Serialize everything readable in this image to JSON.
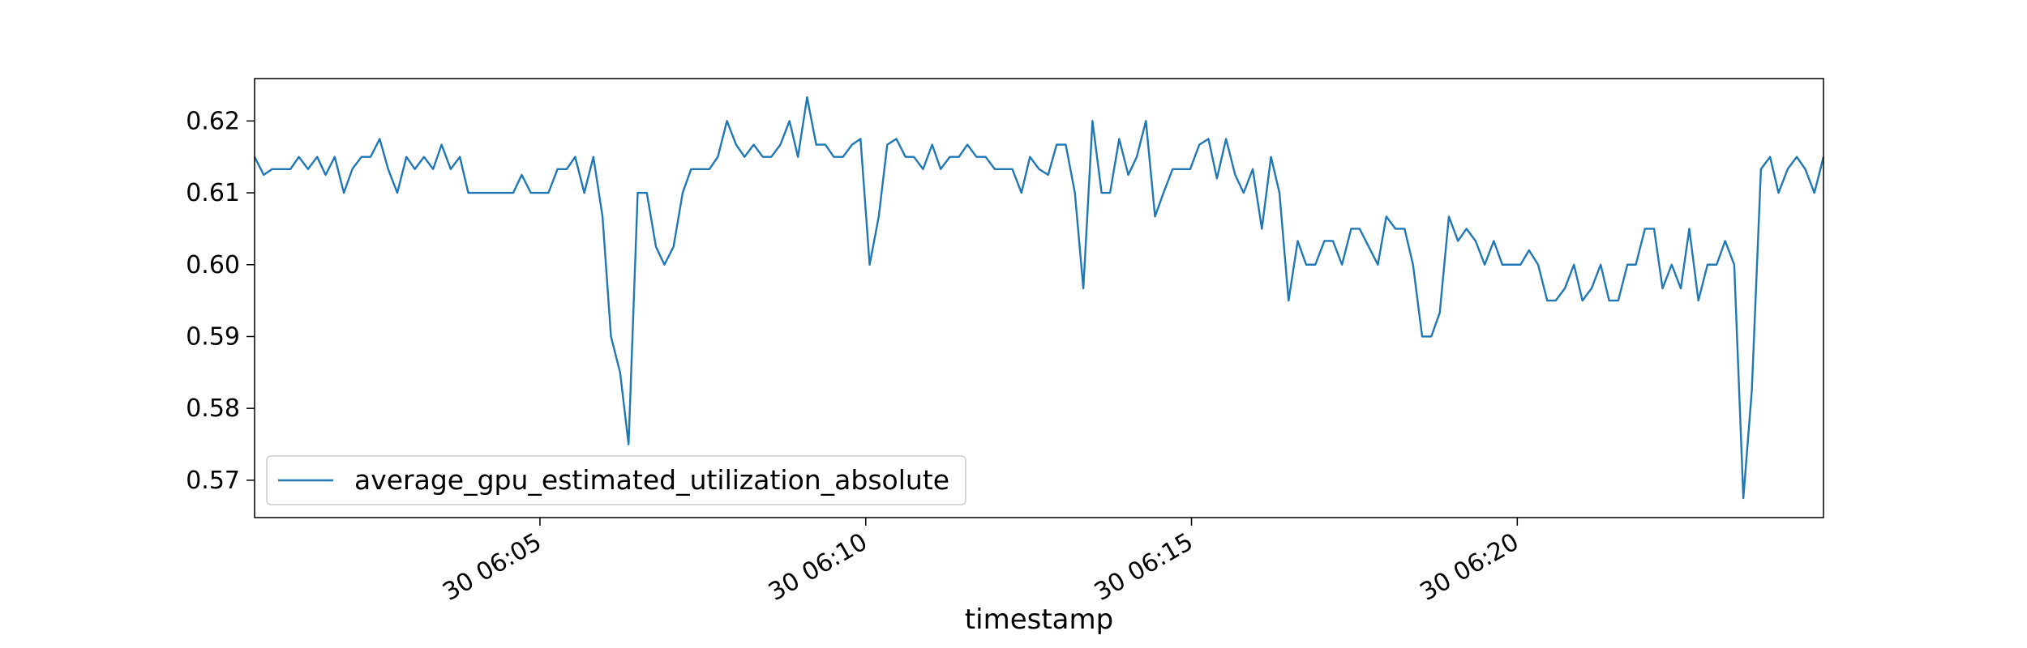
{
  "chart_data": {
    "type": "line",
    "xlabel": "timestamp",
    "legend": "lower left",
    "grid": false,
    "xlim": [
      0.62,
      24.7
    ],
    "ylim": [
      0.5648,
      0.6259
    ],
    "xticks": [
      {
        "value": 5,
        "label": "30 06:05"
      },
      {
        "value": 10,
        "label": "30 06:10"
      },
      {
        "value": 15,
        "label": "30 06:15"
      },
      {
        "value": 20,
        "label": "30 06:20"
      }
    ],
    "yticks": [
      0.57,
      0.58,
      0.59,
      {
        "value": 0.6,
        "label": "0.60"
      },
      0.61,
      0.62
    ],
    "x": [
      0.62,
      0.76,
      0.89,
      1.03,
      1.17,
      1.3,
      1.44,
      1.58,
      1.71,
      1.85,
      1.99,
      2.12,
      2.26,
      2.4,
      2.54,
      2.67,
      2.81,
      2.95,
      3.08,
      3.22,
      3.36,
      3.49,
      3.63,
      3.77,
      3.9,
      4.04,
      4.18,
      4.31,
      4.45,
      4.59,
      4.72,
      4.86,
      5.0,
      5.13,
      5.27,
      5.41,
      5.54,
      5.68,
      5.82,
      5.96,
      6.09,
      6.23,
      6.36,
      6.5,
      6.64,
      6.78,
      6.91,
      7.05,
      7.19,
      7.32,
      7.46,
      7.6,
      7.73,
      7.87,
      8.01,
      8.14,
      8.28,
      8.42,
      8.55,
      8.69,
      8.83,
      8.96,
      9.1,
      9.24,
      9.38,
      9.51,
      9.65,
      9.79,
      9.92,
      10.06,
      10.2,
      10.33,
      10.47,
      10.61,
      10.74,
      10.88,
      11.02,
      11.15,
      11.29,
      11.43,
      11.56,
      11.7,
      11.84,
      11.98,
      12.11,
      12.25,
      12.39,
      12.52,
      12.66,
      12.8,
      12.93,
      13.07,
      13.21,
      13.34,
      13.48,
      13.62,
      13.75,
      13.89,
      14.03,
      14.16,
      14.3,
      14.44,
      14.57,
      14.71,
      14.85,
      14.98,
      15.12,
      15.26,
      15.39,
      15.53,
      15.67,
      15.8,
      15.94,
      16.08,
      16.22,
      16.35,
      16.49,
      16.63,
      16.76,
      16.9,
      17.04,
      17.17,
      17.31,
      17.45,
      17.58,
      17.72,
      17.86,
      17.99,
      18.13,
      18.27,
      18.4,
      18.54,
      18.68,
      18.81,
      18.95,
      19.09,
      19.22,
      19.36,
      19.5,
      19.64,
      19.77,
      19.91,
      20.05,
      20.18,
      20.32,
      20.46,
      20.59,
      20.73,
      20.87,
      21.0,
      21.14,
      21.28,
      21.41,
      21.55,
      21.69,
      21.82,
      21.96,
      22.1,
      22.23,
      22.37,
      22.51,
      22.64,
      22.78,
      22.92,
      23.06,
      23.19,
      23.33,
      23.47,
      23.6,
      23.74,
      23.88,
      24.01,
      24.15,
      24.29,
      24.42,
      24.56,
      24.7
    ],
    "series": [
      {
        "name": "average_gpu_estimated_utilization_absolute",
        "color": "#1f77b4",
        "values": [
          0.615,
          0.6125,
          0.6133,
          0.6133,
          0.6133,
          0.615,
          0.6133,
          0.615,
          0.6125,
          0.615,
          0.61,
          0.6133,
          0.615,
          0.615,
          0.6175,
          0.6133,
          0.61,
          0.615,
          0.6133,
          0.615,
          0.6133,
          0.6167,
          0.6133,
          0.615,
          0.61,
          0.61,
          0.61,
          0.61,
          0.61,
          0.61,
          0.6125,
          0.61,
          0.61,
          0.61,
          0.6133,
          0.6133,
          0.615,
          0.61,
          0.615,
          0.6067,
          0.59,
          0.585,
          0.575,
          0.61,
          0.61,
          0.6025,
          0.6,
          0.6025,
          0.61,
          0.6133,
          0.6133,
          0.6133,
          0.615,
          0.62,
          0.6167,
          0.615,
          0.6167,
          0.615,
          0.615,
          0.6167,
          0.62,
          0.615,
          0.6233,
          0.6167,
          0.6167,
          0.615,
          0.615,
          0.6167,
          0.6175,
          0.6,
          0.6067,
          0.6167,
          0.6175,
          0.615,
          0.615,
          0.6133,
          0.6167,
          0.6133,
          0.615,
          0.615,
          0.6167,
          0.615,
          0.615,
          0.6133,
          0.6133,
          0.6133,
          0.61,
          0.615,
          0.6133,
          0.6125,
          0.6167,
          0.6167,
          0.61,
          0.5967,
          0.62,
          0.61,
          0.61,
          0.6175,
          0.6125,
          0.615,
          0.62,
          0.6067,
          0.61,
          0.6133,
          0.6133,
          0.6133,
          0.6167,
          0.6175,
          0.612,
          0.6175,
          0.6125,
          0.61,
          0.6133,
          0.605,
          0.615,
          0.61,
          0.595,
          0.6033,
          0.6,
          0.6,
          0.6033,
          0.6033,
          0.6,
          0.605,
          0.605,
          0.6025,
          0.6,
          0.6067,
          0.605,
          0.605,
          0.6,
          0.59,
          0.59,
          0.5933,
          0.6067,
          0.6033,
          0.605,
          0.6033,
          0.6,
          0.6033,
          0.6,
          0.6,
          0.6,
          0.602,
          0.6,
          0.595,
          0.595,
          0.5967,
          0.6,
          0.595,
          0.5967,
          0.6,
          0.595,
          0.595,
          0.6,
          0.6,
          0.605,
          0.605,
          0.5967,
          0.6,
          0.5967,
          0.605,
          0.595,
          0.6,
          0.6,
          0.6033,
          0.6,
          0.5675,
          0.5825,
          0.6133,
          0.615,
          0.61,
          0.6133,
          0.615,
          0.6133,
          0.61,
          0.615
        ]
      }
    ]
  }
}
